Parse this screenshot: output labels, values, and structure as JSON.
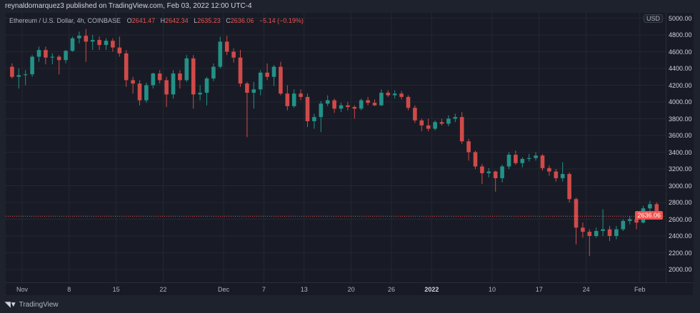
{
  "header": {
    "publish_line": "reynaldomarquez3 published on TradingView.com, Feb 03, 2022 12:00 UTC-4"
  },
  "legend": {
    "symbol": "Ethereum / U.S. Dollar, 4h, COINBASE",
    "o_label": "O",
    "o": "2641.47",
    "h_label": "H",
    "h": "2642.34",
    "l_label": "L",
    "l": "2635.23",
    "c_label": "C",
    "c": "2636.06",
    "change": "−5.14 (−0.19%)"
  },
  "price_axis": {
    "currency": "USD",
    "last_price": "2636.06"
  },
  "footer": {
    "brand": "TradingView",
    "logo_icon": "tradingview-logo-icon"
  },
  "colors": {
    "up": "#26a69a",
    "down": "#ef5350",
    "background": "#181b25",
    "grid": "#232734",
    "last_price": "#ef5350"
  },
  "chart_data": {
    "type": "candlestick",
    "interval_shown": "4h",
    "note_resolution": "approximate daily OHLC read from 4h candles",
    "ylim": [
      1900,
      5040
    ],
    "grid": true,
    "y_ticks": [
      "5000.00",
      "4800.00",
      "4600.00",
      "4400.00",
      "4200.00",
      "4000.00",
      "3800.00",
      "3600.00",
      "3400.00",
      "3200.00",
      "3000.00",
      "2800.00",
      "2600.00",
      "2400.00",
      "2200.00",
      "2000.00"
    ],
    "x_ticks": [
      {
        "label": "Nov",
        "date": "2021-11-01",
        "bold": false
      },
      {
        "label": "8",
        "date": "2021-11-08",
        "bold": false
      },
      {
        "label": "15",
        "date": "2021-11-15",
        "bold": false
      },
      {
        "label": "22",
        "date": "2021-11-22",
        "bold": false
      },
      {
        "label": "Dec",
        "date": "2021-12-01",
        "bold": false
      },
      {
        "label": "7",
        "date": "2021-12-07",
        "bold": false
      },
      {
        "label": "13",
        "date": "2021-12-13",
        "bold": false
      },
      {
        "label": "20",
        "date": "2021-12-20",
        "bold": false
      },
      {
        "label": "26",
        "date": "2021-12-26",
        "bold": false
      },
      {
        "label": "2022",
        "date": "2022-01-01",
        "bold": true
      },
      {
        "label": "10",
        "date": "2022-01-10",
        "bold": false
      },
      {
        "label": "17",
        "date": "2022-01-17",
        "bold": false
      },
      {
        "label": "24",
        "date": "2022-01-24",
        "bold": false
      },
      {
        "label": "Feb",
        "date": "2022-02-01",
        "bold": false
      }
    ],
    "last_price": 2636.06,
    "ohlc": [
      [
        "2021-10-30",
        4420,
        4460,
        4280,
        4300
      ],
      [
        "2021-10-31",
        4300,
        4400,
        4160,
        4320
      ],
      [
        "2021-11-01",
        4320,
        4380,
        4200,
        4330
      ],
      [
        "2021-11-02",
        4330,
        4560,
        4300,
        4540
      ],
      [
        "2021-11-03",
        4540,
        4660,
        4480,
        4620
      ],
      [
        "2021-11-04",
        4620,
        4660,
        4450,
        4530
      ],
      [
        "2021-11-05",
        4530,
        4580,
        4450,
        4540
      ],
      [
        "2021-11-06",
        4540,
        4560,
        4330,
        4500
      ],
      [
        "2021-11-07",
        4500,
        4620,
        4460,
        4610
      ],
      [
        "2021-11-08",
        4610,
        4780,
        4600,
        4760
      ],
      [
        "2021-11-09",
        4760,
        4840,
        4700,
        4790
      ],
      [
        "2021-11-10",
        4790,
        4870,
        4480,
        4720
      ],
      [
        "2021-11-11",
        4720,
        4800,
        4620,
        4740
      ],
      [
        "2021-11-12",
        4740,
        4780,
        4620,
        4680
      ],
      [
        "2021-11-13",
        4680,
        4760,
        4620,
        4730
      ],
      [
        "2021-11-14",
        4730,
        4760,
        4600,
        4650
      ],
      [
        "2021-11-15",
        4650,
        4780,
        4540,
        4580
      ],
      [
        "2021-11-16",
        4580,
        4620,
        4180,
        4260
      ],
      [
        "2021-11-17",
        4260,
        4300,
        4100,
        4220
      ],
      [
        "2021-11-18",
        4220,
        4260,
        3960,
        4020
      ],
      [
        "2021-11-19",
        4020,
        4230,
        3990,
        4200
      ],
      [
        "2021-11-20",
        4200,
        4350,
        4160,
        4340
      ],
      [
        "2021-11-21",
        4340,
        4380,
        4220,
        4260
      ],
      [
        "2021-11-22",
        4260,
        4300,
        3940,
        4090
      ],
      [
        "2021-11-23",
        4090,
        4380,
        4040,
        4340
      ],
      [
        "2021-11-24",
        4340,
        4380,
        4160,
        4260
      ],
      [
        "2021-11-25",
        4260,
        4560,
        4240,
        4520
      ],
      [
        "2021-11-26",
        4520,
        4560,
        3920,
        4090
      ],
      [
        "2021-11-27",
        4090,
        4200,
        4020,
        4110
      ],
      [
        "2021-11-28",
        4110,
        4300,
        3960,
        4280
      ],
      [
        "2021-11-29",
        4280,
        4460,
        4250,
        4420
      ],
      [
        "2021-11-30",
        4420,
        4780,
        4400,
        4720
      ],
      [
        "2021-12-01",
        4720,
        4790,
        4560,
        4600
      ],
      [
        "2021-12-02",
        4600,
        4640,
        4470,
        4530
      ],
      [
        "2021-12-03",
        4530,
        4620,
        4180,
        4220
      ],
      [
        "2021-12-04",
        4220,
        4240,
        3580,
        4110
      ],
      [
        "2021-12-05",
        4110,
        4240,
        3920,
        4150
      ],
      [
        "2021-12-06",
        4150,
        4380,
        4080,
        4350
      ],
      [
        "2021-12-07",
        4350,
        4460,
        4260,
        4300
      ],
      [
        "2021-12-08",
        4300,
        4440,
        4190,
        4420
      ],
      [
        "2021-12-09",
        4420,
        4480,
        4080,
        4100
      ],
      [
        "2021-12-10",
        4100,
        4200,
        3900,
        3950
      ],
      [
        "2021-12-11",
        3950,
        4150,
        3930,
        4100
      ],
      [
        "2021-12-12",
        4100,
        4150,
        4020,
        4060
      ],
      [
        "2021-12-13",
        4060,
        4100,
        3700,
        3770
      ],
      [
        "2021-12-14",
        3770,
        3860,
        3680,
        3820
      ],
      [
        "2021-12-15",
        3820,
        4010,
        3640,
        3980
      ],
      [
        "2021-12-16",
        3980,
        4080,
        3950,
        4020
      ],
      [
        "2021-12-17",
        4020,
        4040,
        3870,
        3920
      ],
      [
        "2021-12-18",
        3920,
        3990,
        3880,
        3960
      ],
      [
        "2021-12-19",
        3960,
        4000,
        3900,
        3940
      ],
      [
        "2021-12-20",
        3940,
        3960,
        3800,
        3920
      ],
      [
        "2021-12-21",
        3920,
        4040,
        3900,
        4020
      ],
      [
        "2021-12-22",
        4020,
        4060,
        3960,
        3990
      ],
      [
        "2021-12-23",
        3990,
        4030,
        3950,
        3960
      ],
      [
        "2021-12-24",
        3960,
        4150,
        3950,
        4110
      ],
      [
        "2021-12-25",
        4110,
        4140,
        4060,
        4080
      ],
      [
        "2021-12-26",
        4080,
        4140,
        4040,
        4100
      ],
      [
        "2021-12-27",
        4100,
        4130,
        4030,
        4060
      ],
      [
        "2021-12-28",
        4060,
        4080,
        3900,
        3930
      ],
      [
        "2021-12-29",
        3930,
        3960,
        3750,
        3780
      ],
      [
        "2021-12-30",
        3780,
        3800,
        3650,
        3720
      ],
      [
        "2021-12-31",
        3720,
        3800,
        3650,
        3680
      ],
      [
        "2022-01-01",
        3680,
        3780,
        3660,
        3760
      ],
      [
        "2022-01-02",
        3760,
        3800,
        3720,
        3740
      ],
      [
        "2022-01-03",
        3740,
        3840,
        3710,
        3800
      ],
      [
        "2022-01-04",
        3800,
        3860,
        3760,
        3820
      ],
      [
        "2022-01-05",
        3820,
        3880,
        3500,
        3530
      ],
      [
        "2022-01-06",
        3530,
        3560,
        3300,
        3400
      ],
      [
        "2022-01-07",
        3400,
        3420,
        3200,
        3230
      ],
      [
        "2022-01-08",
        3230,
        3260,
        3020,
        3150
      ],
      [
        "2022-01-09",
        3150,
        3210,
        3100,
        3170
      ],
      [
        "2022-01-10",
        3170,
        3180,
        2930,
        3090
      ],
      [
        "2022-01-11",
        3090,
        3250,
        3040,
        3230
      ],
      [
        "2022-01-12",
        3230,
        3400,
        3200,
        3370
      ],
      [
        "2022-01-13",
        3370,
        3420,
        3250,
        3270
      ],
      [
        "2022-01-14",
        3270,
        3340,
        3220,
        3320
      ],
      [
        "2022-01-15",
        3320,
        3380,
        3290,
        3330
      ],
      [
        "2022-01-16",
        3330,
        3400,
        3300,
        3360
      ],
      [
        "2022-01-17",
        3360,
        3380,
        3180,
        3210
      ],
      [
        "2022-01-18",
        3210,
        3240,
        3120,
        3170
      ],
      [
        "2022-01-19",
        3170,
        3200,
        3050,
        3090
      ],
      [
        "2022-01-20",
        3090,
        3280,
        3050,
        3140
      ],
      [
        "2022-01-21",
        3140,
        3160,
        2800,
        2840
      ],
      [
        "2022-01-22",
        2840,
        2860,
        2300,
        2500
      ],
      [
        "2022-01-23",
        2500,
        2560,
        2380,
        2450
      ],
      [
        "2022-01-24",
        2450,
        2480,
        2160,
        2400
      ],
      [
        "2022-01-25",
        2400,
        2500,
        2380,
        2460
      ],
      [
        "2022-01-26",
        2460,
        2720,
        2400,
        2480
      ],
      [
        "2022-01-27",
        2480,
        2520,
        2340,
        2400
      ],
      [
        "2022-01-28",
        2400,
        2520,
        2360,
        2480
      ],
      [
        "2022-01-29",
        2480,
        2600,
        2460,
        2580
      ],
      [
        "2022-01-30",
        2580,
        2640,
        2540,
        2600
      ],
      [
        "2022-01-31",
        2600,
        2650,
        2480,
        2560
      ],
      [
        "2022-02-01",
        2560,
        2760,
        2550,
        2730
      ],
      [
        "2022-02-02",
        2730,
        2820,
        2700,
        2780
      ],
      [
        "2022-02-03",
        2780,
        2800,
        2600,
        2636.06
      ]
    ]
  }
}
